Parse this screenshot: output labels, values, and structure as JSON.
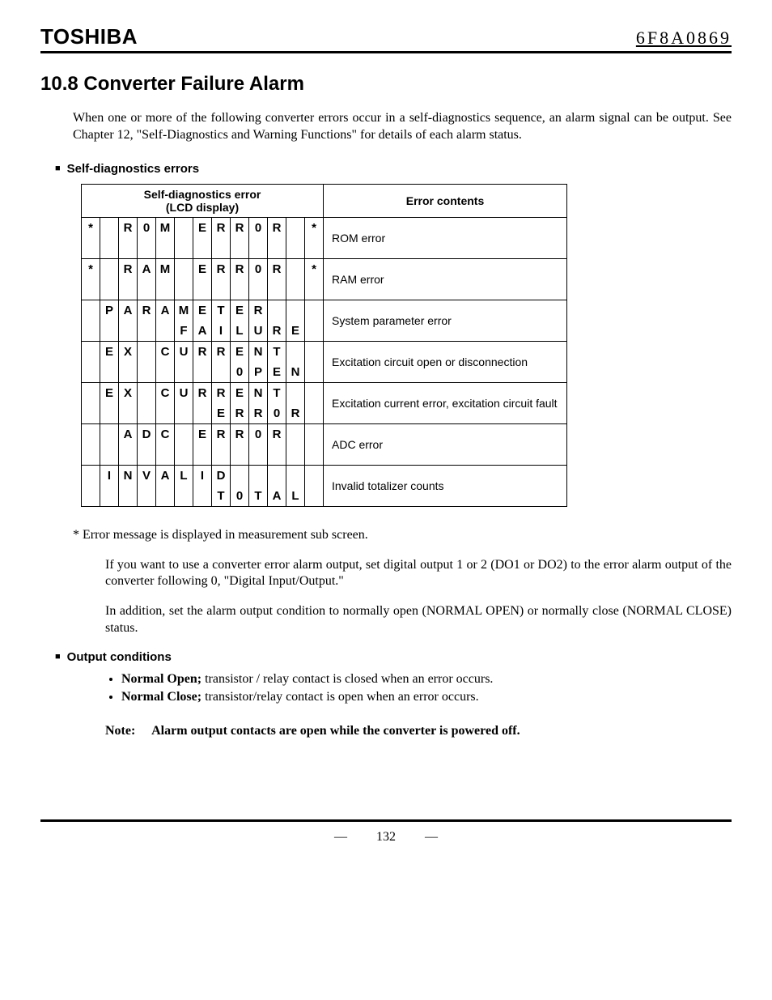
{
  "header": {
    "brand": "TOSHIBA",
    "doccode": "6F8A0869"
  },
  "section": {
    "title": "10.8 Converter Failure Alarm",
    "intro": "When one or more of the following converter errors occur in a self-diagnostics sequence, an alarm signal can be output. See Chapter 12, \"Self-Diagnostics and Warning Functions\" for details of each alarm status."
  },
  "subhead1": "Self-diagnostics errors",
  "table": {
    "col_count": 13,
    "header_lcd": "Self-diagnostics error\n(LCD display)",
    "header_contents": "Error contents",
    "cell_font_size": 15,
    "cell_font_weight": 700,
    "rows": [
      {
        "line1": [
          "*",
          "",
          "R",
          "0",
          "M",
          "",
          "E",
          "R",
          "R",
          "0",
          "R",
          "",
          "*"
        ],
        "line2": [
          "",
          "",
          "",
          "",
          "",
          "",
          "",
          "",
          "",
          "",
          "",
          "",
          ""
        ],
        "desc": "ROM error"
      },
      {
        "line1": [
          "*",
          "",
          "R",
          "A",
          "M",
          "",
          "E",
          "R",
          "R",
          "0",
          "R",
          "",
          "*"
        ],
        "line2": [
          "",
          "",
          "",
          "",
          "",
          "",
          "",
          "",
          "",
          "",
          "",
          "",
          ""
        ],
        "desc": "RAM error"
      },
      {
        "line1": [
          "",
          "P",
          "A",
          "R",
          "A",
          "M",
          "E",
          "T",
          "E",
          "R",
          "",
          "",
          ""
        ],
        "line2": [
          "",
          "",
          "",
          "",
          "",
          "F",
          "A",
          "I",
          "L",
          "U",
          "R",
          "E",
          ""
        ],
        "desc": "System parameter error"
      },
      {
        "line1": [
          "",
          "E",
          "X",
          "",
          "C",
          "U",
          "R",
          "R",
          "E",
          "N",
          "T",
          "",
          ""
        ],
        "line2": [
          "",
          "",
          "",
          "",
          "",
          "",
          "",
          "",
          "0",
          "P",
          "E",
          "N",
          ""
        ],
        "desc": "Excitation circuit open or disconnection"
      },
      {
        "line1": [
          "",
          "E",
          "X",
          "",
          "C",
          "U",
          "R",
          "R",
          "E",
          "N",
          "T",
          "",
          ""
        ],
        "line2": [
          "",
          "",
          "",
          "",
          "",
          "",
          "",
          "E",
          "R",
          "R",
          "0",
          "R",
          ""
        ],
        "desc": "Excitation current error, excitation circuit fault"
      },
      {
        "line1": [
          "",
          "",
          "A",
          "D",
          "C",
          "",
          "E",
          "R",
          "R",
          "0",
          "R",
          "",
          ""
        ],
        "line2": [
          "",
          "",
          "",
          "",
          "",
          "",
          "",
          "",
          "",
          "",
          "",
          "",
          ""
        ],
        "desc": "ADC error"
      },
      {
        "line1": [
          "",
          "I",
          "N",
          "V",
          "A",
          "L",
          "I",
          "D",
          "",
          "",
          "",
          "",
          ""
        ],
        "line2": [
          "",
          "",
          "",
          "",
          "",
          "",
          "",
          "T",
          "0",
          "T",
          "A",
          "L",
          ""
        ],
        "desc": "Invalid totalizer counts"
      }
    ]
  },
  "footnote": "* Error message is displayed in measurement sub screen.",
  "para1": "If you want to use a converter error alarm output, set digital output 1 or 2 (DO1 or DO2) to the error alarm output of the converter following 0, \"Digital Input/Output.\"",
  "para2": "In addition, set the alarm output condition to normally open (NORMAL OPEN) or normally close (NORMAL CLOSE) status.",
  "subhead2": "Output conditions",
  "conditions": [
    {
      "bold": "Normal Open;",
      "text": " transistor / relay contact is closed when an error occurs."
    },
    {
      "bold": "Normal Close;",
      "text": " transistor/relay contact is open when an error occurs."
    }
  ],
  "note": {
    "label": "Note:",
    "text": "Alarm output contacts are open while the converter is powered off."
  },
  "page_number": "132"
}
